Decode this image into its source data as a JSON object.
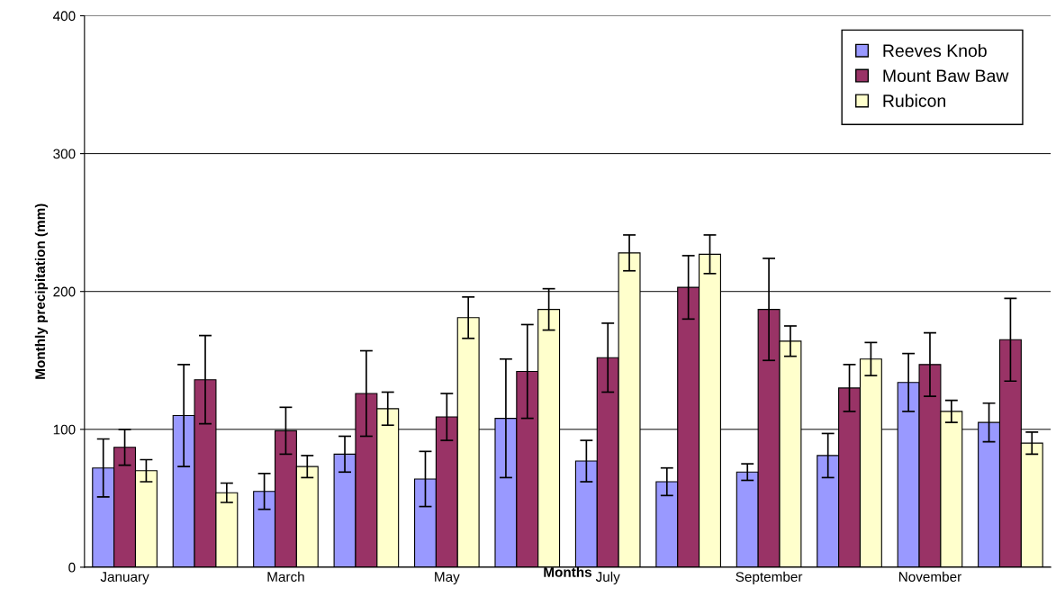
{
  "chart_data": {
    "type": "bar",
    "xlabel": "Months",
    "ylabel": "Monthly precipitation (mm)",
    "categories": [
      "January",
      null,
      "March",
      null,
      "May",
      null,
      "July",
      null,
      "September",
      null,
      "November",
      null
    ],
    "series": [
      {
        "name": "Reeves Knob",
        "color": "#9999ff",
        "values": [
          72,
          110,
          55,
          82,
          64,
          108,
          77,
          62,
          69,
          81,
          134,
          105
        ],
        "errors": [
          21,
          37,
          13,
          13,
          20,
          43,
          15,
          10,
          6,
          16,
          21,
          14
        ]
      },
      {
        "name": "Mount Baw Baw",
        "color": "#993366",
        "values": [
          87,
          136,
          99,
          126,
          109,
          142,
          152,
          203,
          187,
          130,
          147,
          165
        ],
        "errors": [
          13,
          32,
          17,
          31,
          17,
          34,
          25,
          23,
          37,
          17,
          23,
          30
        ]
      },
      {
        "name": "Rubicon",
        "color": "#ffffcc",
        "values": [
          70,
          54,
          73,
          115,
          181,
          187,
          228,
          227,
          164,
          151,
          113,
          90
        ],
        "errors": [
          8,
          7,
          8,
          12,
          15,
          15,
          13,
          14,
          11,
          12,
          8,
          8
        ]
      }
    ],
    "ylim": [
      0,
      400
    ],
    "yticks": [
      0,
      100,
      200,
      300,
      400
    ],
    "grid": "y",
    "legend": "top right"
  }
}
